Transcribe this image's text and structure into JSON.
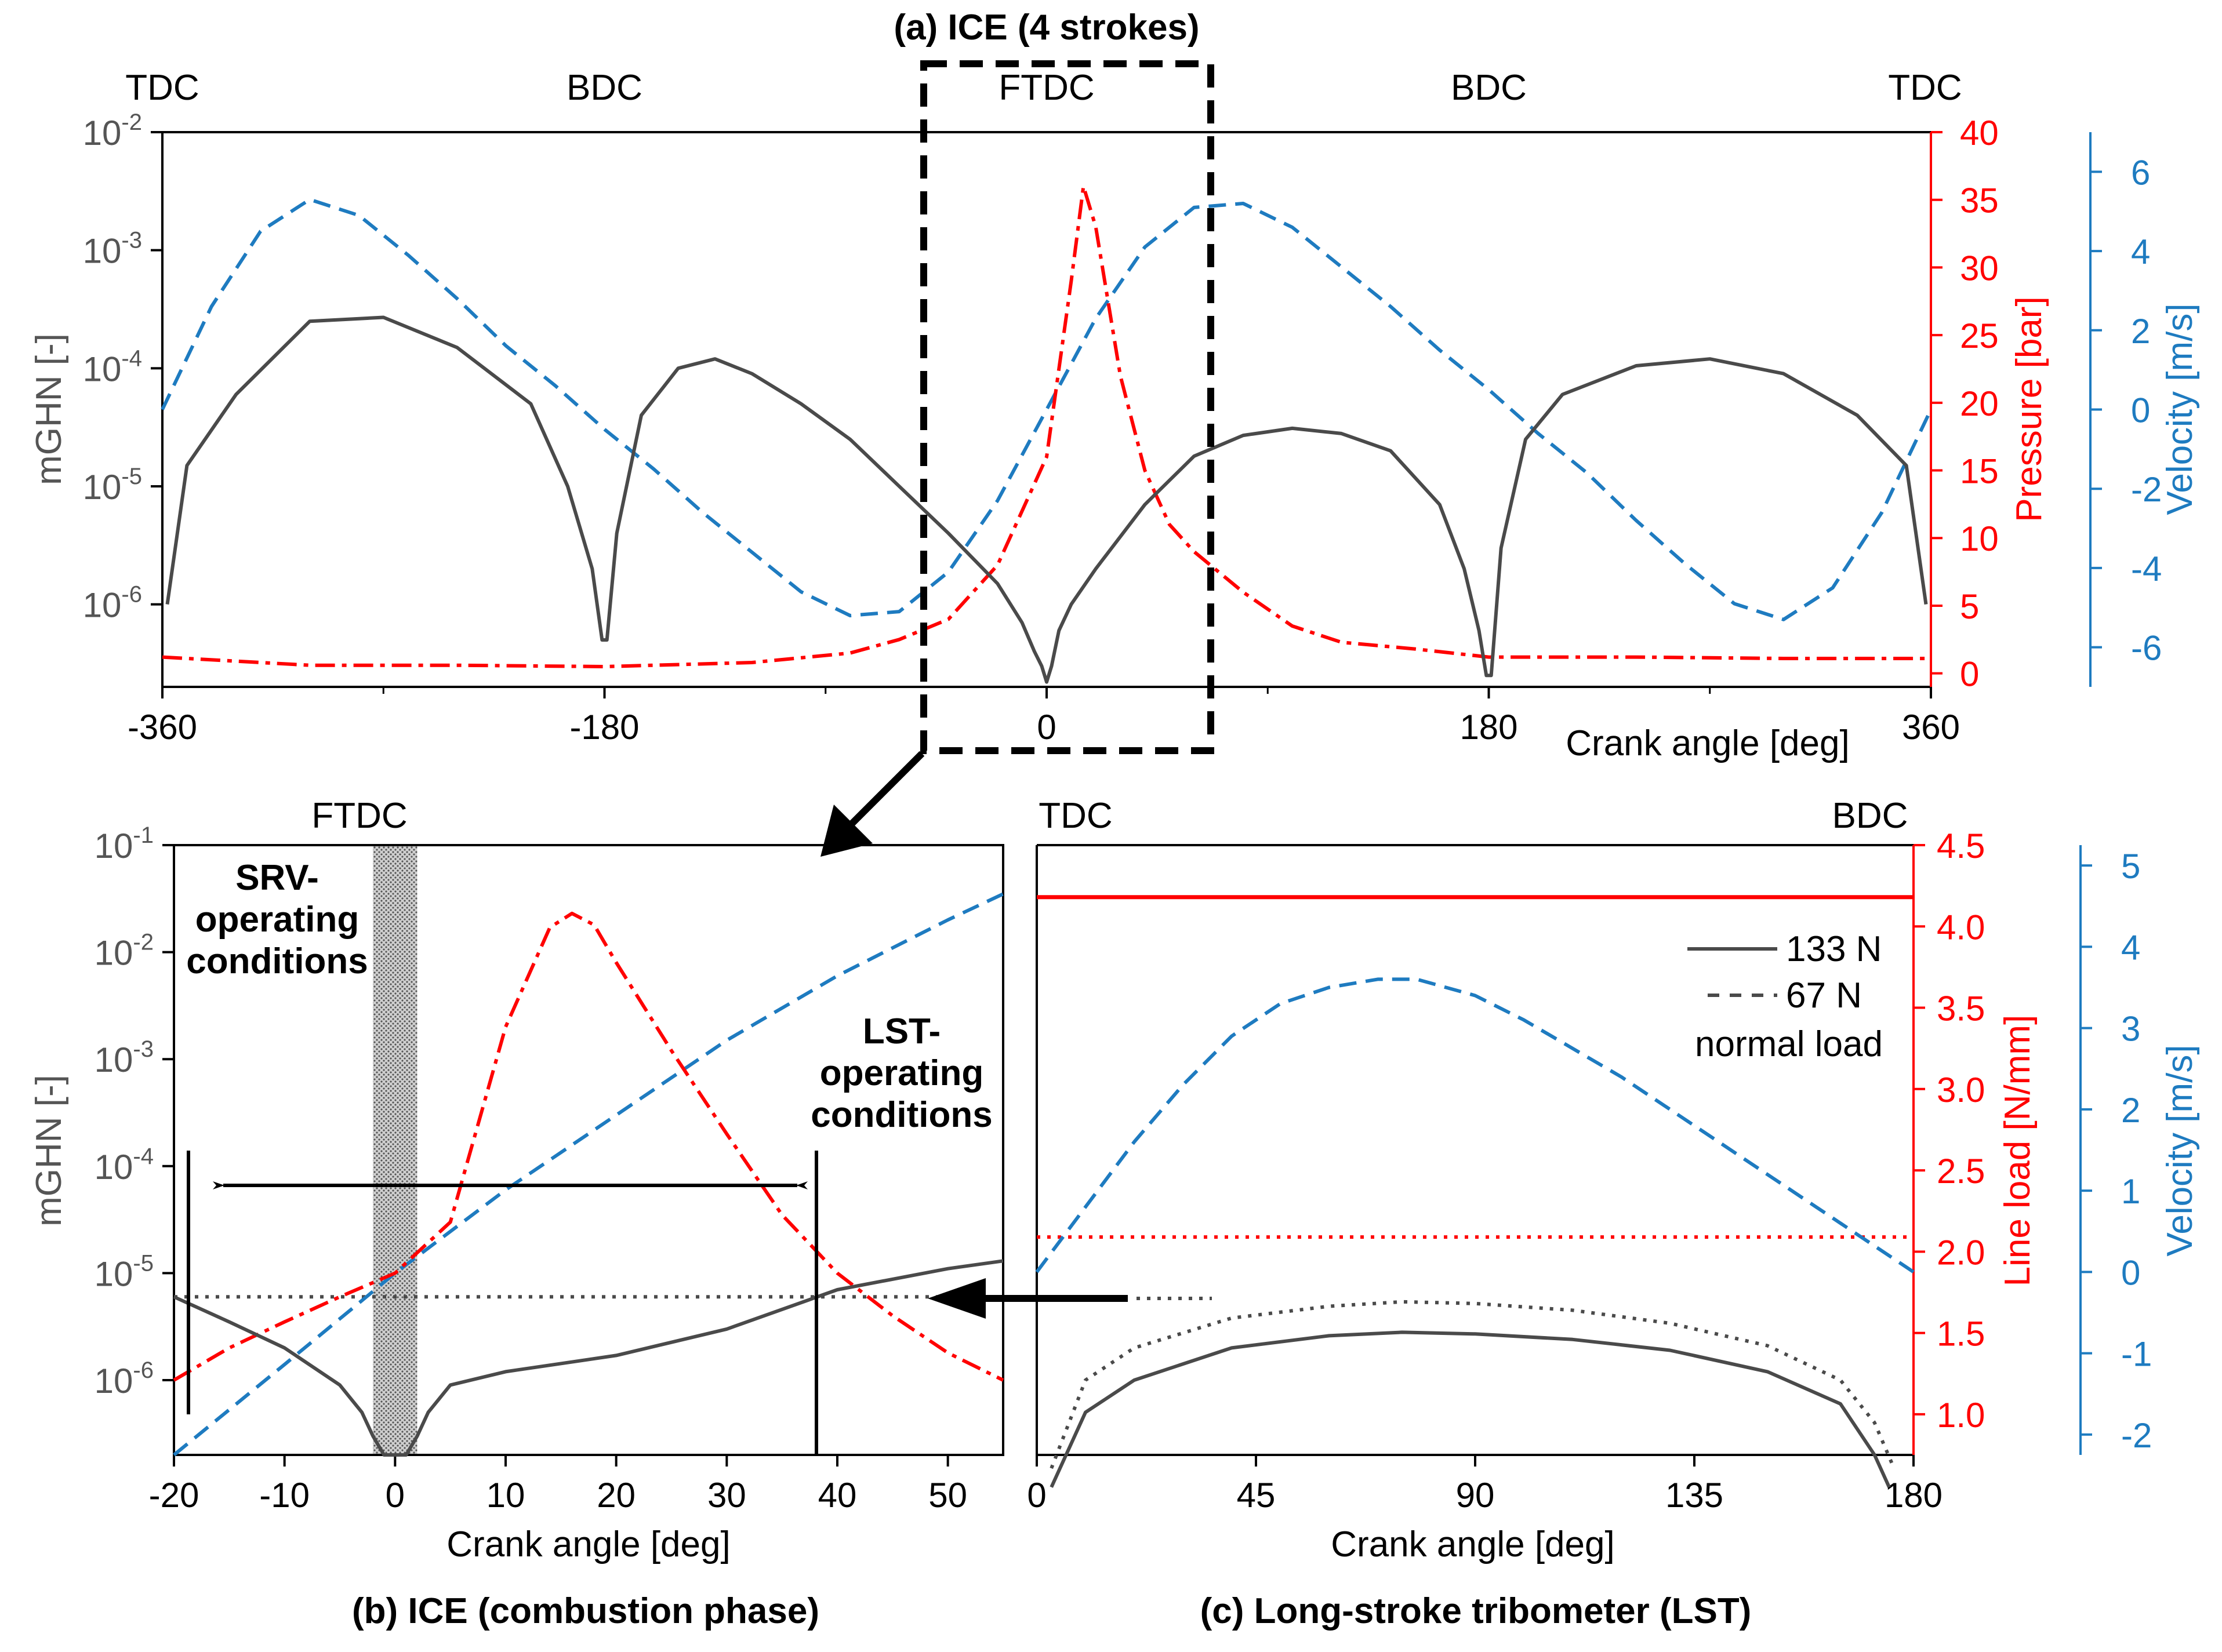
{
  "colors": {
    "mghn": "#4a4a4a",
    "pressure": "#ff0000",
    "velocity": "#1e7bc0",
    "annot": "#000000"
  },
  "chart_data": [
    {
      "type": "line",
      "panel": "a",
      "title": "(a) ICE (4 strokes)",
      "xlabel": "Crank angle [deg]",
      "xlim": [
        -360,
        360
      ],
      "xticks": [
        "-360",
        "-180",
        "0",
        "180",
        "360"
      ],
      "top_labels": [
        "TDC",
        "BDC",
        "FTDC",
        "BDC",
        "TDC"
      ],
      "y_left": {
        "label": "mGHN [-]",
        "scale": "log",
        "lim": [
          2e-07,
          0.01
        ],
        "ticks": [
          "-6",
          "-5",
          "-4",
          "-3",
          "-2"
        ]
      },
      "y_right1": {
        "label": "Pressure [bar]",
        "lim": [
          -1,
          40
        ],
        "ticks": [
          "0",
          "5",
          "10",
          "15",
          "20",
          "25",
          "30",
          "35",
          "40"
        ]
      },
      "y_right2": {
        "label": "Velocity [m/s]",
        "lim": [
          -7,
          7
        ],
        "ticks": [
          "-6",
          "-4",
          "-2",
          "0",
          "2",
          "4",
          "6"
        ]
      },
      "series": [
        {
          "name": "mGHN",
          "style": "solid",
          "color": "#4a4a4a",
          "x": [
            -358,
            -350,
            -330,
            -300,
            -270,
            -240,
            -210,
            -195,
            -185,
            -181,
            -179,
            -175,
            -165,
            -150,
            -135,
            -120,
            -100,
            -80,
            -60,
            -40,
            -20,
            -10,
            -5,
            -2,
            0,
            2,
            5,
            10,
            20,
            40,
            60,
            80,
            100,
            120,
            140,
            160,
            170,
            176,
            179,
            181,
            185,
            195,
            210,
            240,
            270,
            300,
            330,
            350,
            358
          ],
          "y": [
            1e-06,
            1.5e-05,
            6e-05,
            0.00025,
            0.00027,
            0.00015,
            5e-05,
            1e-05,
            2e-06,
            5e-07,
            5e-07,
            4e-06,
            4e-05,
            0.0001,
            0.00012,
            9e-05,
            5e-05,
            2.5e-05,
            1e-05,
            4e-06,
            1.5e-06,
            7e-07,
            4e-07,
            3e-07,
            2.2e-07,
            3e-07,
            6e-07,
            1e-06,
            2e-06,
            7e-06,
            1.8e-05,
            2.7e-05,
            3.1e-05,
            2.8e-05,
            2e-05,
            7e-06,
            2e-06,
            6e-07,
            2.5e-07,
            2.5e-07,
            3e-06,
            2.5e-05,
            6e-05,
            0.000105,
            0.00012,
            9e-05,
            4e-05,
            1.5e-05,
            1e-06
          ]
        },
        {
          "name": "Pressure",
          "style": "dashdot",
          "color": "#ff0000",
          "x": [
            -360,
            -300,
            -240,
            -180,
            -120,
            -80,
            -60,
            -40,
            -20,
            0,
            10,
            15,
            20,
            30,
            40,
            50,
            60,
            80,
            100,
            120,
            150,
            180,
            240,
            300,
            360
          ],
          "y": [
            1.2,
            0.6,
            0.6,
            0.5,
            0.8,
            1.5,
            2.5,
            4,
            8,
            16,
            29,
            36,
            33,
            22,
            15,
            11,
            9,
            6,
            3.5,
            2.3,
            1.8,
            1.2,
            1.2,
            1.1,
            1.1
          ]
        },
        {
          "name": "Velocity",
          "style": "dashed",
          "color": "#1e7bc0",
          "x": [
            -360,
            -340,
            -320,
            -300,
            -280,
            -260,
            -240,
            -220,
            -200,
            -180,
            -160,
            -140,
            -120,
            -100,
            -80,
            -60,
            -40,
            -20,
            0,
            20,
            40,
            60,
            80,
            100,
            120,
            140,
            160,
            180,
            200,
            220,
            240,
            260,
            280,
            300,
            320,
            340,
            360
          ],
          "y": [
            0,
            2.6,
            4.5,
            5.3,
            4.9,
            3.9,
            2.8,
            1.6,
            0.6,
            -0.5,
            -1.5,
            -2.6,
            -3.6,
            -4.6,
            -5.2,
            -5.1,
            -4.1,
            -2.3,
            0,
            2.3,
            4.1,
            5.1,
            5.2,
            4.6,
            3.6,
            2.6,
            1.5,
            0.5,
            -0.6,
            -1.6,
            -2.8,
            -3.9,
            -4.9,
            -5.3,
            -4.5,
            -2.6,
            0
          ]
        }
      ]
    },
    {
      "type": "line",
      "panel": "b",
      "title": "(b) ICE (combustion phase)",
      "xlabel": "Crank angle [deg]",
      "xlim": [
        -20,
        55
      ],
      "xticks": [
        "-20",
        "-10",
        "0",
        "10",
        "20",
        "30",
        "40",
        "50"
      ],
      "top_labels": [
        "FTDC"
      ],
      "y_left": {
        "label": "mGHN [-]",
        "scale": "log",
        "lim": [
          2e-07,
          0.1
        ],
        "ticks": [
          "-6",
          "-5",
          "-4",
          "-3",
          "-2",
          "-1"
        ]
      },
      "annotations": [
        "SRV-",
        "operating",
        "conditions",
        "LST-",
        "operating",
        "conditions"
      ],
      "series": [
        {
          "name": "mGHN",
          "style": "solid",
          "color": "#4a4a4a",
          "x": [
            -20,
            -15,
            -10,
            -5,
            -3,
            -2,
            -1,
            0,
            1,
            2,
            3,
            5,
            10,
            20,
            30,
            40,
            50,
            55
          ],
          "y": [
            6e-06,
            3.5e-06,
            2e-06,
            9e-07,
            5e-07,
            3e-07,
            2e-07,
            2e-07,
            2e-07,
            3e-07,
            5e-07,
            9e-07,
            1.2e-06,
            1.7e-06,
            3e-06,
            7e-06,
            1.1e-05,
            1.3e-05
          ]
        },
        {
          "name": "Pressure",
          "style": "dashdot",
          "color": "#ff0000",
          "x": [
            -20,
            -15,
            -10,
            -5,
            0,
            5,
            10,
            14,
            16,
            18,
            20,
            25,
            30,
            35,
            40,
            45,
            50,
            55
          ],
          "y": [
            1e-06,
            2e-06,
            3.5e-06,
            6e-06,
            1e-05,
            3e-05,
            0.002,
            0.017,
            0.023,
            0.018,
            0.008,
            0.0012,
            0.0002,
            3.5e-05,
            1e-05,
            4e-06,
            1.8e-06,
            1e-06
          ]
        },
        {
          "name": "Velocity",
          "style": "dashed",
          "color": "#1e7bc0",
          "x": [
            -20,
            -10,
            0,
            10,
            20,
            30,
            40,
            50,
            55
          ],
          "y": [
            2e-07,
            1.4e-06,
            1e-05,
            6e-05,
            0.0003,
            0.0015,
            0.006,
            0.02,
            0.035
          ]
        },
        {
          "name": "LST mGHN level",
          "style": "dotted",
          "color": "#4a4a4a",
          "x": [
            -20,
            55
          ],
          "y": [
            6e-06,
            6e-06
          ]
        }
      ]
    },
    {
      "type": "line",
      "panel": "c",
      "title": "(c) Long-stroke tribometer (LST)",
      "xlabel": "Crank angle [deg]",
      "xlim": [
        0,
        180
      ],
      "xticks": [
        "0",
        "45",
        "90",
        "135",
        "180"
      ],
      "top_labels": [
        "TDC",
        "BDC"
      ],
      "y_right1": {
        "label": "Line load [N/mm]",
        "lim": [
          0.75,
          4.5
        ],
        "ticks": [
          "1.0",
          "1.5",
          "2.0",
          "2.5",
          "3.0",
          "3.5",
          "4.0",
          "4.5"
        ]
      },
      "y_right2": {
        "label": "Velocity [m/s]",
        "lim": [
          -2.25,
          5.25
        ],
        "ticks": [
          "-2",
          "-1",
          "0",
          "1",
          "2",
          "3",
          "4",
          "5"
        ]
      },
      "legend": {
        "entries": [
          "133 N",
          "67 N"
        ],
        "title": "normal load",
        "position": "top-right"
      },
      "series": [
        {
          "name": "133 N",
          "style": "solid",
          "color": "#4a4a4a",
          "x": [
            3,
            10,
            20,
            40,
            60,
            75,
            90,
            110,
            130,
            150,
            165,
            172,
            175
          ],
          "y": [
            1e-07,
            5e-07,
            1e-06,
            2e-06,
            2.6e-06,
            2.8e-06,
            2.7e-06,
            2.4e-06,
            1.9e-06,
            1.2e-06,
            6e-07,
            2e-07,
            1e-07
          ]
        },
        {
          "name": "67 N",
          "style": "dotted",
          "color": "#4a4a4a",
          "x": [
            3,
            10,
            20,
            40,
            60,
            75,
            90,
            110,
            130,
            150,
            165,
            172,
            176
          ],
          "y": [
            1.5e-07,
            1e-06,
            2e-06,
            3.8e-06,
            4.9e-06,
            5.4e-06,
            5.2e-06,
            4.5e-06,
            3.4e-06,
            2.1e-06,
            1e-06,
            4e-07,
            1.5e-07
          ]
        },
        {
          "name": "Line load 133 N",
          "style": "solid",
          "color": "#ff0000",
          "x": [
            0,
            180
          ],
          "y": [
            4.18,
            4.18
          ]
        },
        {
          "name": "Line load 67 N",
          "style": "dotted",
          "color": "#ff0000",
          "x": [
            0,
            180
          ],
          "y": [
            2.09,
            2.09
          ]
        },
        {
          "name": "Velocity",
          "style": "dashed",
          "color": "#1e7bc0",
          "x": [
            0,
            10,
            20,
            30,
            40,
            50,
            60,
            70,
            78,
            90,
            100,
            120,
            140,
            160,
            180
          ],
          "y": [
            0,
            0.8,
            1.6,
            2.3,
            2.9,
            3.3,
            3.5,
            3.6,
            3.6,
            3.4,
            3.1,
            2.4,
            1.6,
            0.8,
            0
          ]
        }
      ]
    }
  ]
}
